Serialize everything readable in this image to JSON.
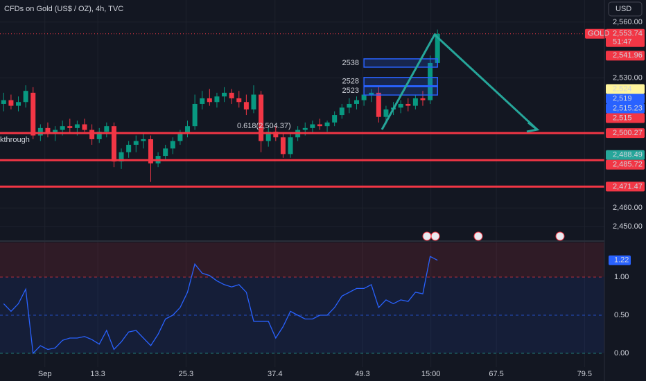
{
  "header": {
    "title": "CFDs on Gold (US$ / OZ), 4h, TVC",
    "currency": "USD"
  },
  "chart_data": [
    {
      "type": "candlestick",
      "open": [
        2516,
        2518,
        2515,
        2517,
        2522,
        2499,
        2503,
        2500,
        2502,
        2504,
        2503,
        2505,
        2502,
        2497,
        2501,
        2504,
        2485,
        2490,
        2494,
        2496,
        2497,
        2484,
        2488,
        2492,
        2496,
        2500,
        2504,
        2516,
        2519,
        2517,
        2520,
        2522,
        2519,
        2517,
        2513,
        2521,
        2496,
        2501,
        2498,
        2489,
        2498,
        2502,
        2503,
        2505,
        2504,
        2506,
        2510,
        2514,
        2516,
        2518,
        2521,
        2522,
        2509,
        2513,
        2514,
        2516,
        2515,
        2519,
        2518,
        2538
      ],
      "high": [
        2522,
        2521,
        2520,
        2526,
        2525,
        2505,
        2506,
        2504,
        2507,
        2508,
        2507,
        2508,
        2505,
        2503,
        2506,
        2506,
        2492,
        2496,
        2499,
        2500,
        2499,
        2490,
        2494,
        2498,
        2502,
        2507,
        2521,
        2523,
        2524,
        2522,
        2525,
        2524,
        2523,
        2521,
        2526,
        2523,
        2503,
        2504,
        2500,
        2500,
        2504,
        2506,
        2507,
        2508,
        2507,
        2512,
        2516,
        2519,
        2520,
        2523,
        2524,
        2525,
        2515,
        2517,
        2518,
        2519,
        2521,
        2523,
        2542,
        2556
      ],
      "low": [
        2512,
        2513,
        2512,
        2514,
        2497,
        2496,
        2498,
        2496,
        2499,
        2500,
        2499,
        2501,
        2494,
        2495,
        2498,
        2482,
        2481,
        2487,
        2490,
        2492,
        2474,
        2482,
        2486,
        2489,
        2494,
        2498,
        2502,
        2513,
        2515,
        2514,
        2517,
        2516,
        2514,
        2510,
        2511,
        2490,
        2493,
        2496,
        2487,
        2487,
        2496,
        2499,
        2500,
        2502,
        2501,
        2504,
        2508,
        2511,
        2513,
        2515,
        2517,
        2506,
        2505,
        2510,
        2511,
        2512,
        2513,
        2515,
        2516,
        2536
      ],
      "close": [
        2518,
        2515,
        2517,
        2523,
        2499,
        2503,
        2500,
        2502,
        2504,
        2503,
        2505,
        2502,
        2497,
        2501,
        2504,
        2485,
        2490,
        2494,
        2496,
        2497,
        2484,
        2488,
        2492,
        2496,
        2500,
        2504,
        2516,
        2519,
        2517,
        2520,
        2522,
        2519,
        2517,
        2513,
        2521,
        2496,
        2501,
        2498,
        2489,
        2498,
        2502,
        2503,
        2505,
        2504,
        2506,
        2510,
        2514,
        2516,
        2518,
        2521,
        2522,
        2509,
        2513,
        2514,
        2516,
        2515,
        2519,
        2518,
        2538,
        2553.74
      ],
      "up_color": "#089981",
      "down_color": "#f23645",
      "xlim": [
        0,
        82.2
      ],
      "xticks": [
        {
          "value": 6.1,
          "label": "Sep"
        },
        13.3,
        25.3,
        37.4,
        49.3,
        {
          "value": 58.6,
          "label": "15:00"
        },
        67.5,
        79.5
      ],
      "ylim": [
        2443.3,
        2571.9
      ],
      "yticks": [
        {
          "value": 2450,
          "label": "2,450.00"
        },
        {
          "value": 2460,
          "label": "2,460.00"
        },
        {
          "value": 2530,
          "label": "2,530.00"
        },
        {
          "value": 2560,
          "label": "2,560.00"
        }
      ],
      "grid": true,
      "levels": [
        2500.27,
        2485.72,
        2471.47
      ],
      "boxes": [
        2538,
        2528,
        2523
      ],
      "price_tags": [
        {
          "value": 2553.74,
          "label": "2,553.74",
          "name": "GOLD",
          "countdown": "51:47",
          "color": "#f23645"
        },
        {
          "value": 2541.96,
          "label": "2,541.96",
          "color": "#f23645"
        },
        {
          "value": 2524,
          "label": "2,524",
          "color": "#fff59d"
        },
        {
          "value": 2519,
          "label": "2,519",
          "color": "#2962ff"
        },
        {
          "value": 2515.23,
          "label": "2,515.23",
          "color": "#2962ff"
        },
        {
          "value": 2515,
          "label": "2,515",
          "color": "#f23645"
        },
        {
          "value": 2500.27,
          "label": "2,500.27",
          "color": "#f23645"
        },
        {
          "value": 2488.49,
          "label": "2,488.49",
          "color": "#26a69a"
        },
        {
          "value": 2485.72,
          "label": "2,485.72",
          "color": "#f23645"
        },
        {
          "value": 2471.47,
          "label": "2,471.47",
          "color": "#f23645"
        }
      ],
      "notes": [
        "kthrough",
        "0.618(2,504.37)"
      ]
    },
    {
      "type": "line",
      "color": "#2962ff",
      "values": [
        0.65,
        0.55,
        0.65,
        0.84,
        0.0,
        0.1,
        0.05,
        0.07,
        0.17,
        0.2,
        0.2,
        0.22,
        0.18,
        0.12,
        0.3,
        0.05,
        0.15,
        0.28,
        0.3,
        0.2,
        0.1,
        0.25,
        0.45,
        0.5,
        0.6,
        0.8,
        1.17,
        1.05,
        1.02,
        0.95,
        0.9,
        0.87,
        0.9,
        0.8,
        0.42,
        0.42,
        0.42,
        0.2,
        0.35,
        0.55,
        0.5,
        0.45,
        0.45,
        0.5,
        0.5,
        0.6,
        0.75,
        0.8,
        0.85,
        0.85,
        0.9,
        0.6,
        0.7,
        0.65,
        0.7,
        0.68,
        0.8,
        0.78,
        1.27,
        1.22
      ],
      "ylim": [
        -0.364,
        1.454
      ],
      "yticks": [
        {
          "value": 0,
          "label": "0.00"
        },
        {
          "value": 0.5,
          "label": "0.50"
        },
        {
          "value": 1,
          "label": "1.00"
        }
      ],
      "last_label": "1.22"
    }
  ]
}
